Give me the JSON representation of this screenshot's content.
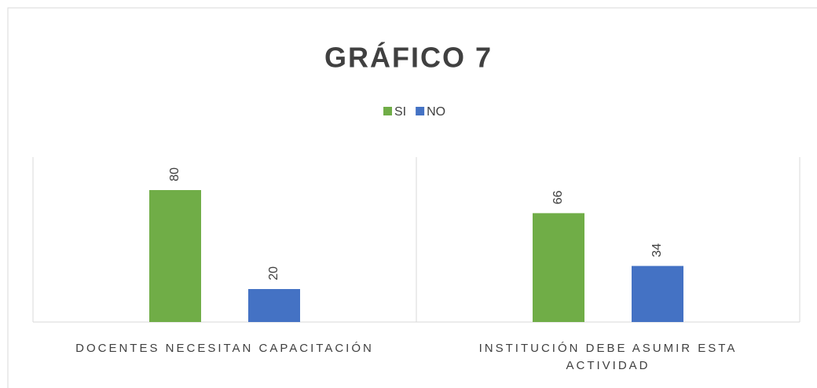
{
  "chart_data": {
    "type": "bar",
    "title": "GRÁFICO 7",
    "categories": [
      "DOCENTES NECESITAN CAPACITACIÓN",
      "INSTITUCIÓN DEBE ASUMIR ESTA ACTIVIDAD"
    ],
    "series": [
      {
        "name": "SI",
        "color": "#70ad47",
        "values": [
          80,
          66
        ]
      },
      {
        "name": "NO",
        "color": "#4472c4",
        "values": [
          20,
          34
        ]
      }
    ],
    "ylim": [
      0,
      100
    ],
    "legend": "top",
    "data_labels": true
  }
}
